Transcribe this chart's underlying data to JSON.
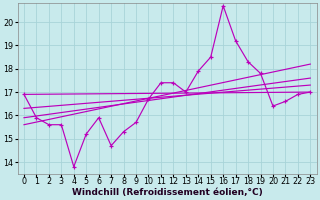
{
  "x": [
    0,
    1,
    2,
    3,
    4,
    5,
    6,
    7,
    8,
    9,
    10,
    11,
    12,
    13,
    14,
    15,
    16,
    17,
    18,
    19,
    20,
    21,
    22,
    23
  ],
  "y_main": [
    16.9,
    15.9,
    15.6,
    15.6,
    13.8,
    15.2,
    15.9,
    14.7,
    15.3,
    15.7,
    16.7,
    17.4,
    17.4,
    17.0,
    17.9,
    18.5,
    20.7,
    19.2,
    18.3,
    17.8,
    16.4,
    16.6,
    16.9,
    17.0
  ],
  "ylim": [
    13.5,
    20.8
  ],
  "xlim": [
    -0.5,
    23.5
  ],
  "yticks": [
    14,
    15,
    16,
    17,
    18,
    19,
    20
  ],
  "xticks": [
    0,
    1,
    2,
    3,
    4,
    5,
    6,
    7,
    8,
    9,
    10,
    11,
    12,
    13,
    14,
    15,
    16,
    17,
    18,
    19,
    20,
    21,
    22,
    23
  ],
  "line_color": "#bb00bb",
  "bg_color": "#c8eaec",
  "grid_color": "#a8d4d8",
  "xlabel": "Windchill (Refroidissement éolien,°C)",
  "xlabel_fontsize": 6.5,
  "tick_fontsize": 5.8,
  "regression_lines": [
    {
      "x0": 0,
      "y0": 16.9,
      "x1": 23,
      "y1": 17.0
    },
    {
      "x0": 0,
      "y0": 16.3,
      "x1": 23,
      "y1": 17.3
    },
    {
      "x0": 0,
      "y0": 15.9,
      "x1": 23,
      "y1": 17.6
    },
    {
      "x0": 0,
      "y0": 15.6,
      "x1": 23,
      "y1": 18.2
    }
  ]
}
